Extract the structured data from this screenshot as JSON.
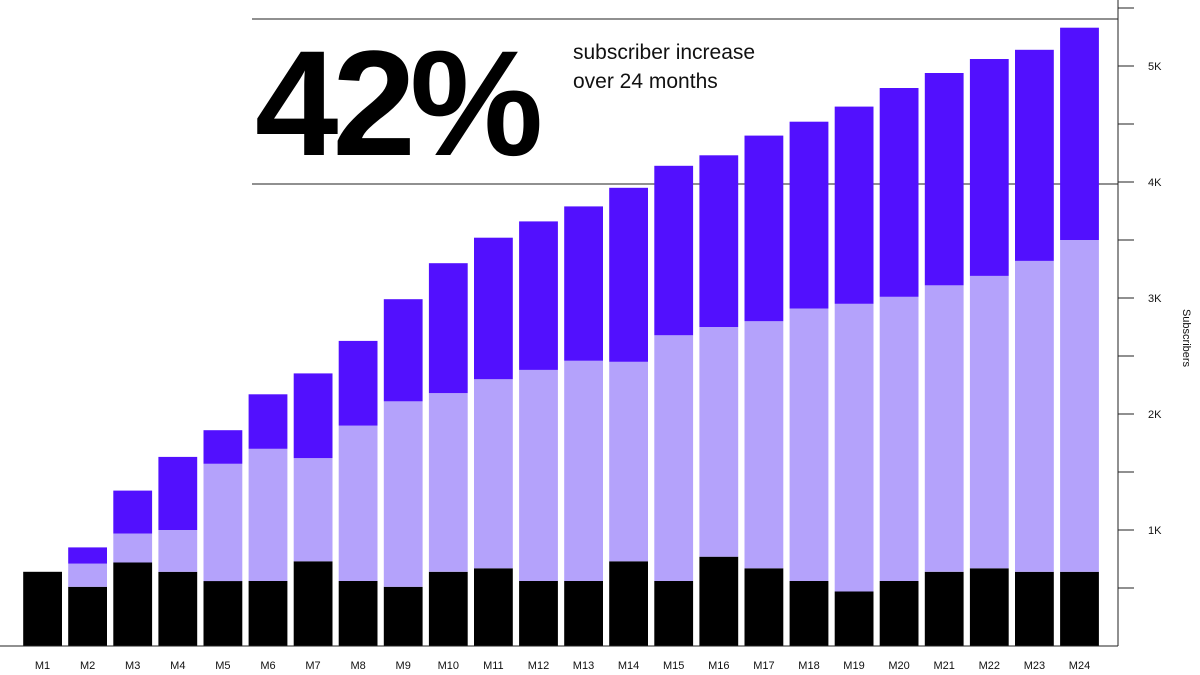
{
  "headline": {
    "value": "42%",
    "caption_line1": "subscriber increase",
    "caption_line2": "over 24 months"
  },
  "colors": {
    "base": "#000000",
    "middle": "#b4a2fb",
    "top": "#5210fe"
  },
  "chart_data": {
    "type": "bar",
    "stacked": true,
    "categories": [
      "M1",
      "M2",
      "M3",
      "M4",
      "M5",
      "M6",
      "M7",
      "M8",
      "M9",
      "M10",
      "M11",
      "M12",
      "M13",
      "M14",
      "M15",
      "M16",
      "M17",
      "M18",
      "M19",
      "M20",
      "M21",
      "M22",
      "M23",
      "M24"
    ],
    "series": [
      {
        "color": "#000000",
        "values": [
          640,
          510,
          720,
          640,
          560,
          560,
          730,
          560,
          510,
          640,
          670,
          560,
          560,
          730,
          560,
          770,
          670,
          560,
          470,
          560,
          640,
          670,
          640,
          640
        ]
      },
      {
        "color": "#b4a2fb",
        "values": [
          0,
          200,
          250,
          360,
          1010,
          1140,
          890,
          1340,
          1600,
          1540,
          1630,
          1820,
          1900,
          1720,
          2120,
          1980,
          2130,
          2350,
          2480,
          2450,
          2470,
          2520,
          2680,
          2860
        ]
      },
      {
        "color": "#5210fe",
        "values": [
          0,
          140,
          370,
          630,
          290,
          470,
          730,
          730,
          880,
          1120,
          1220,
          1280,
          1330,
          1500,
          1460,
          1480,
          1600,
          1610,
          1700,
          1800,
          1830,
          1870,
          1820,
          1830
        ]
      }
    ],
    "ylabel": "Subscribers",
    "yticks": [
      "1K",
      "2K",
      "3K",
      "4K",
      "5K"
    ],
    "ylim": [
      0,
      5500
    ],
    "grid": false
  }
}
